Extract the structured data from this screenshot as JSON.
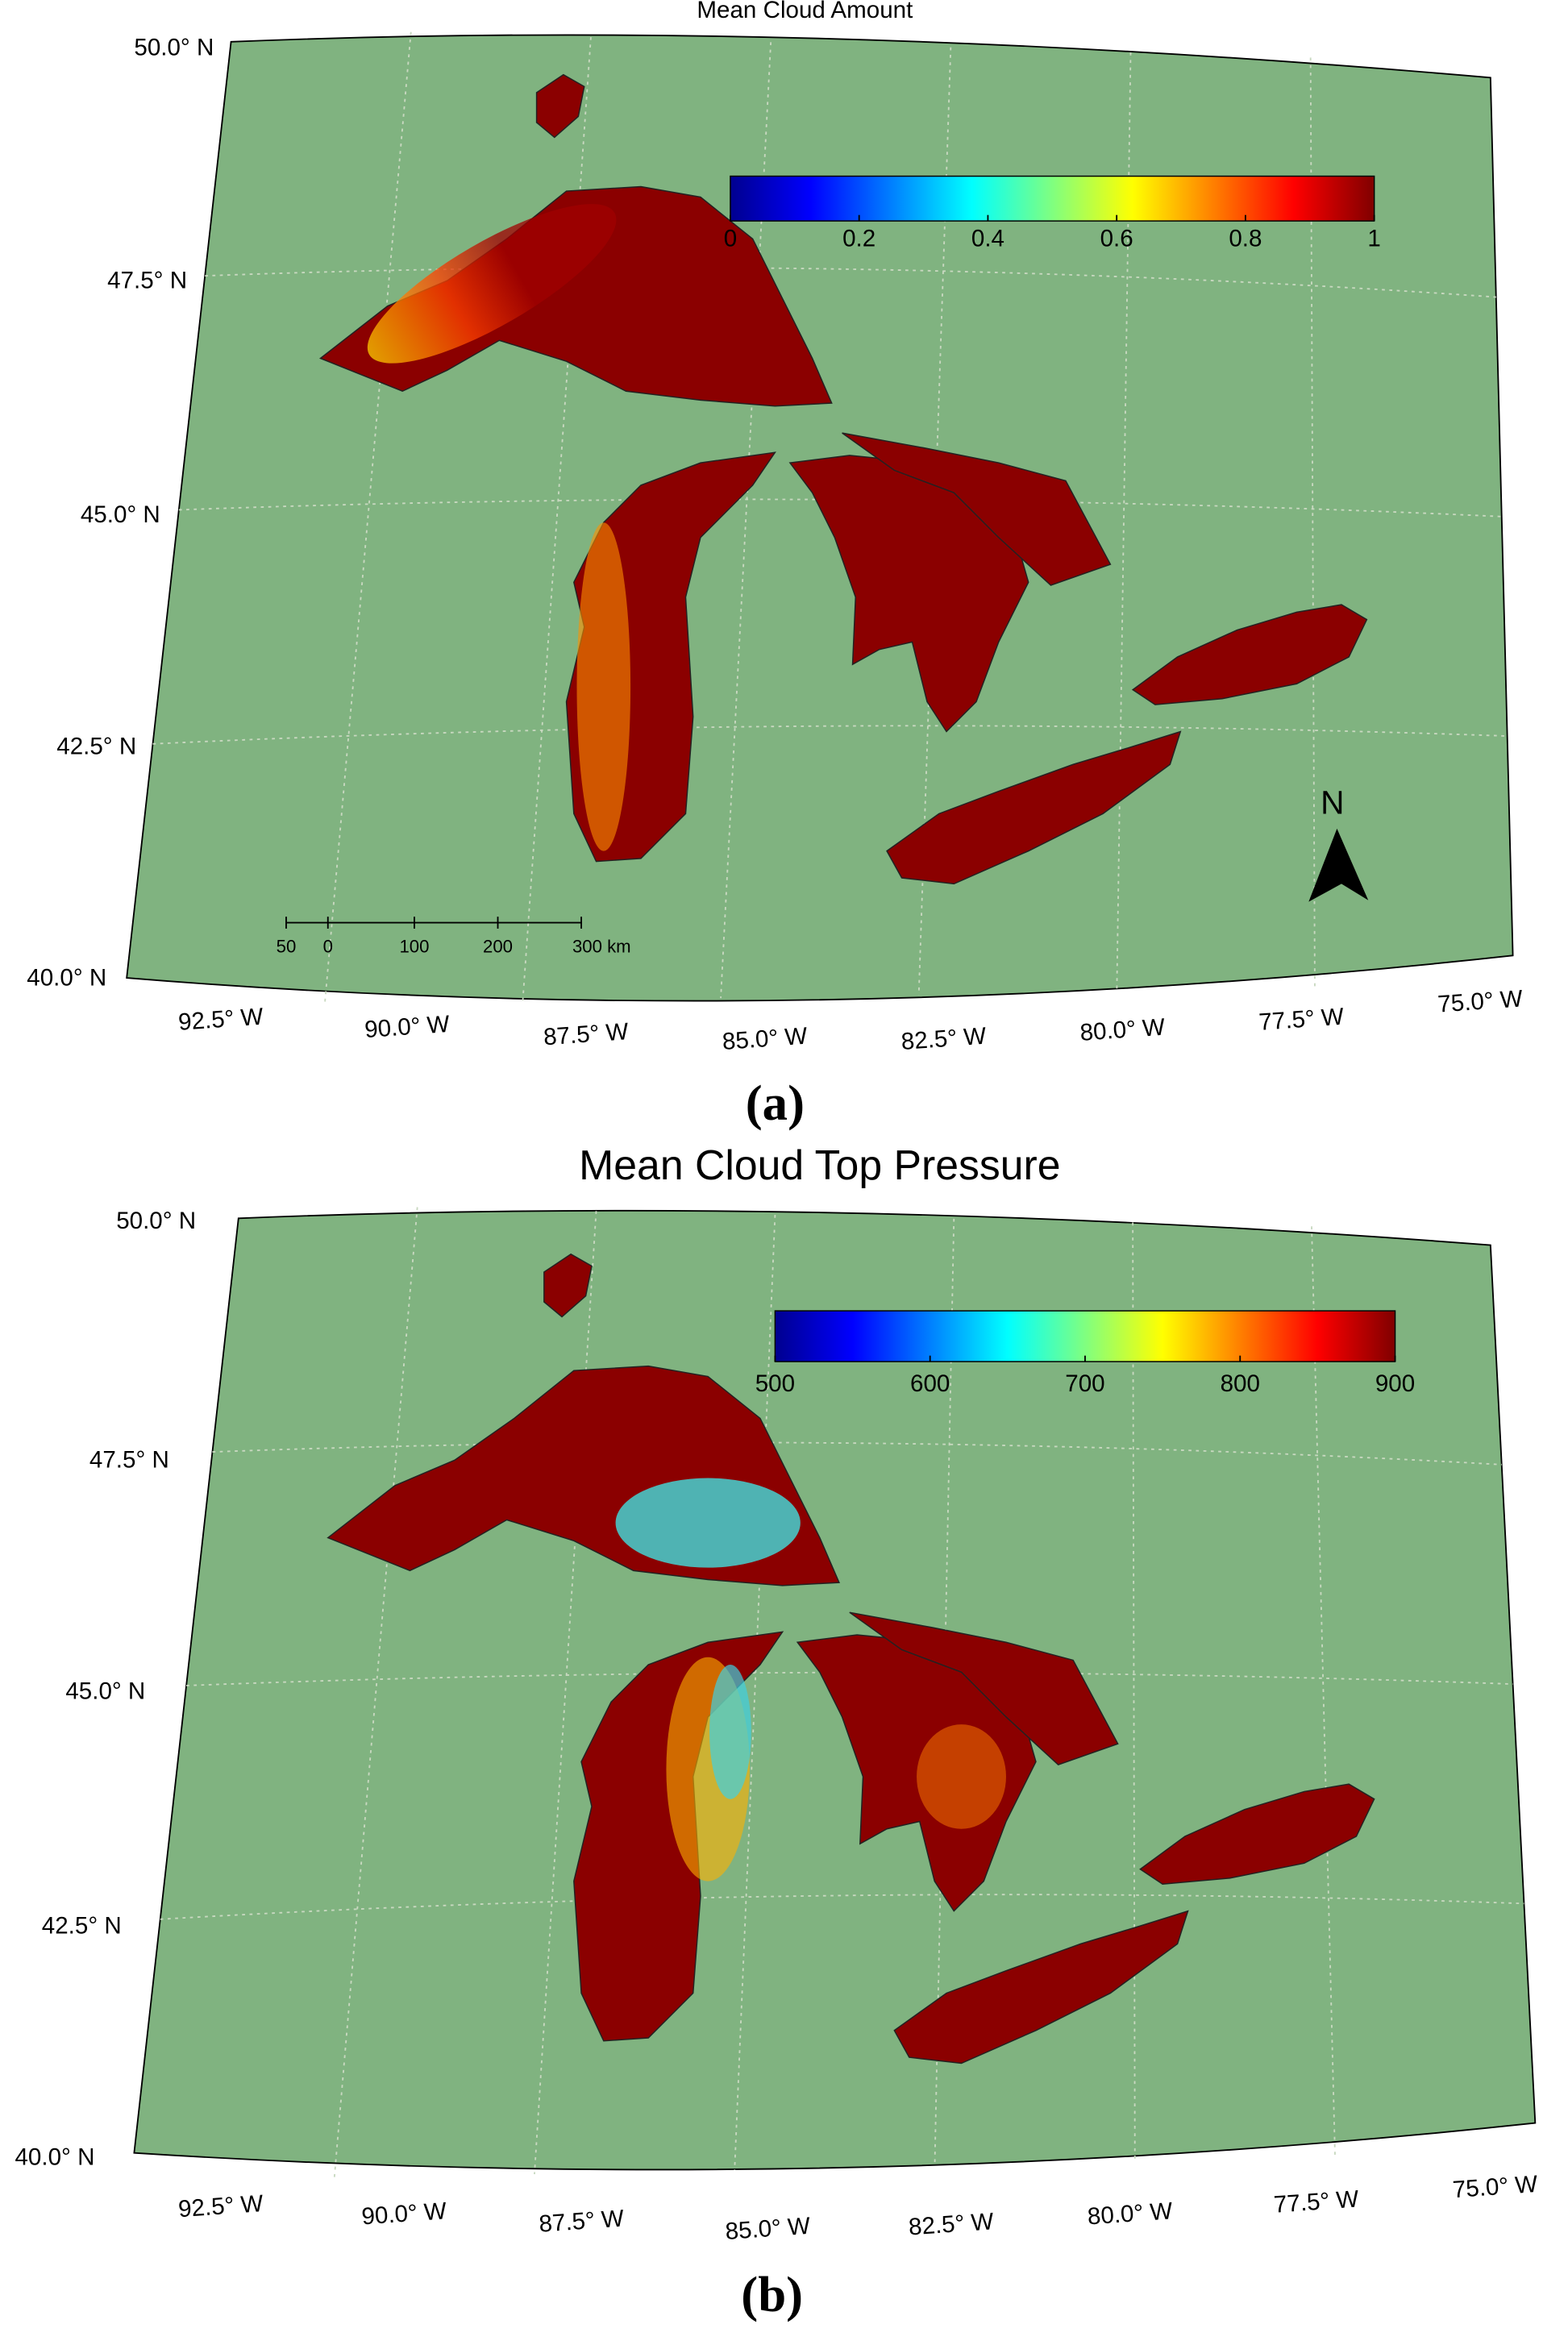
{
  "panels": [
    {
      "title": "Mean Cloud Amount",
      "label": "(a)",
      "colorbar": {
        "ticks": [
          0,
          0.2,
          0.4,
          0.6,
          0.8,
          1
        ]
      },
      "latitude_labels": [
        "50.0° N",
        "47.5° N",
        "45.0° N",
        "42.5° N",
        "40.0° N"
      ],
      "longitude_labels": [
        "92.5° W",
        "90.0° W",
        "87.5° W",
        "85.0° W",
        "82.5° W",
        "80.0° W",
        "77.5° W",
        "75.0° W"
      ],
      "scale_bar": {
        "labels": [
          "50",
          "0",
          "100",
          "200",
          "300 km"
        ]
      },
      "north_label": "N"
    },
    {
      "title": "Mean Cloud Top Pressure",
      "label": "(b)",
      "colorbar": {
        "ticks": [
          500,
          600,
          700,
          800,
          900
        ]
      },
      "latitude_labels": [
        "50.0° N",
        "47.5° N",
        "45.0° N",
        "42.5° N",
        "40.0° N"
      ],
      "longitude_labels": [
        "92.5° W",
        "90.0° W",
        "87.5° W",
        "85.0° W",
        "82.5° W",
        "80.0° W",
        "77.5° W",
        "75.0° W"
      ]
    }
  ]
}
